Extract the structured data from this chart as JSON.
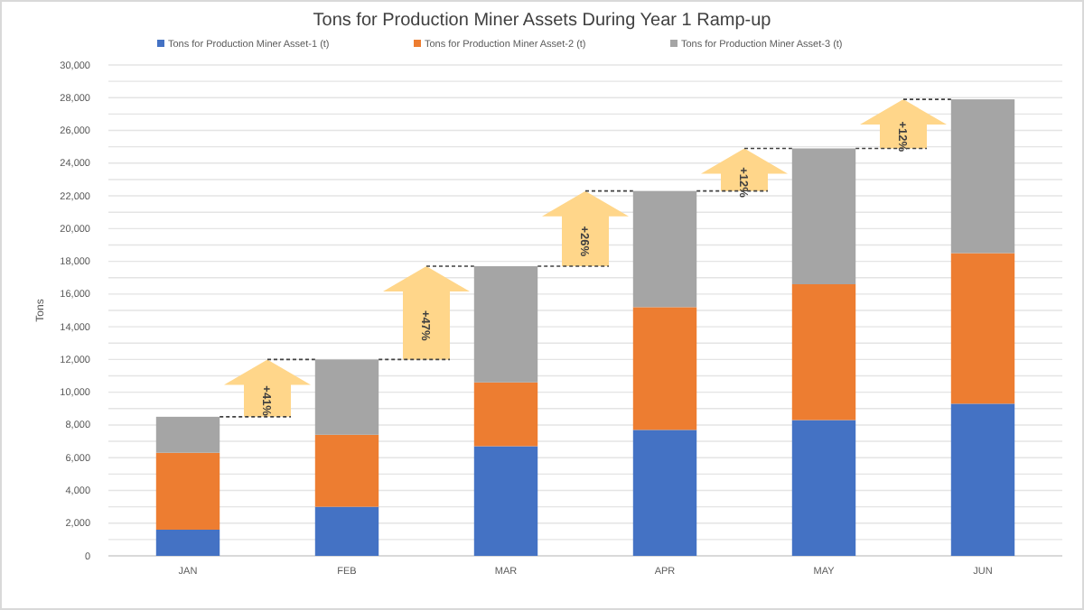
{
  "chart_data": {
    "type": "bar",
    "title": "Tons for Production Miner Assets During Year 1 Ramp-up",
    "ylabel": "Tons",
    "stacked": true,
    "legend": "top",
    "grid": "y",
    "categories": [
      "JAN",
      "FEB",
      "MAR",
      "APR",
      "MAY",
      "JUN"
    ],
    "series": [
      {
        "name": "Tons for Production Miner Asset-1 (t)",
        "color": "#4472c4",
        "values": [
          1600,
          3000,
          6700,
          7700,
          8300,
          9300
        ]
      },
      {
        "name": "Tons for Production Miner Asset-2 (t)",
        "color": "#ed7d31",
        "values": [
          4700,
          4400,
          3900,
          7500,
          8300,
          9200
        ]
      },
      {
        "name": "Tons for Production Miner Asset-3 (t)",
        "color": "#a5a5a5",
        "values": [
          2200,
          4600,
          7100,
          7100,
          8300,
          9400
        ]
      }
    ],
    "ylim": [
      0,
      30000
    ],
    "yticks": [
      0,
      {
        "value": 1000,
        "label": null
      },
      {
        "value": 2000,
        "label": "2,000"
      },
      {
        "value": 3000,
        "label": null
      },
      {
        "value": 4000,
        "label": "4,000"
      },
      {
        "value": 5000,
        "label": null
      },
      {
        "value": 6000,
        "label": "6,000"
      },
      {
        "value": 7000,
        "label": null
      },
      {
        "value": 8000,
        "label": "8,000"
      },
      {
        "value": 9000,
        "label": null
      },
      {
        "value": 10000,
        "label": "10,000"
      },
      {
        "value": 11000,
        "label": null
      },
      {
        "value": 12000,
        "label": "12,000"
      },
      {
        "value": 13000,
        "label": null
      },
      {
        "value": 14000,
        "label": "14,000"
      },
      {
        "value": 15000,
        "label": null
      },
      {
        "value": 16000,
        "label": "16,000"
      },
      {
        "value": 17000,
        "label": null
      },
      {
        "value": 18000,
        "label": "18,000"
      },
      {
        "value": 19000,
        "label": null
      },
      {
        "value": 20000,
        "label": "20,000"
      },
      {
        "value": 21000,
        "label": null
      },
      {
        "value": 22000,
        "label": "22,000"
      },
      {
        "value": 23000,
        "label": null
      },
      {
        "value": 24000,
        "label": "24,000"
      },
      {
        "value": 25000,
        "label": null
      },
      {
        "value": 26000,
        "label": "26,000"
      },
      {
        "value": 27000,
        "label": null
      },
      {
        "value": 28000,
        "label": "28,000"
      },
      {
        "value": 29000,
        "label": null
      },
      {
        "value": 30000,
        "label": "30,000"
      }
    ],
    "annotations": [
      "+41%",
      "+47%",
      "+26%",
      "+12%",
      "+12%"
    ]
  }
}
